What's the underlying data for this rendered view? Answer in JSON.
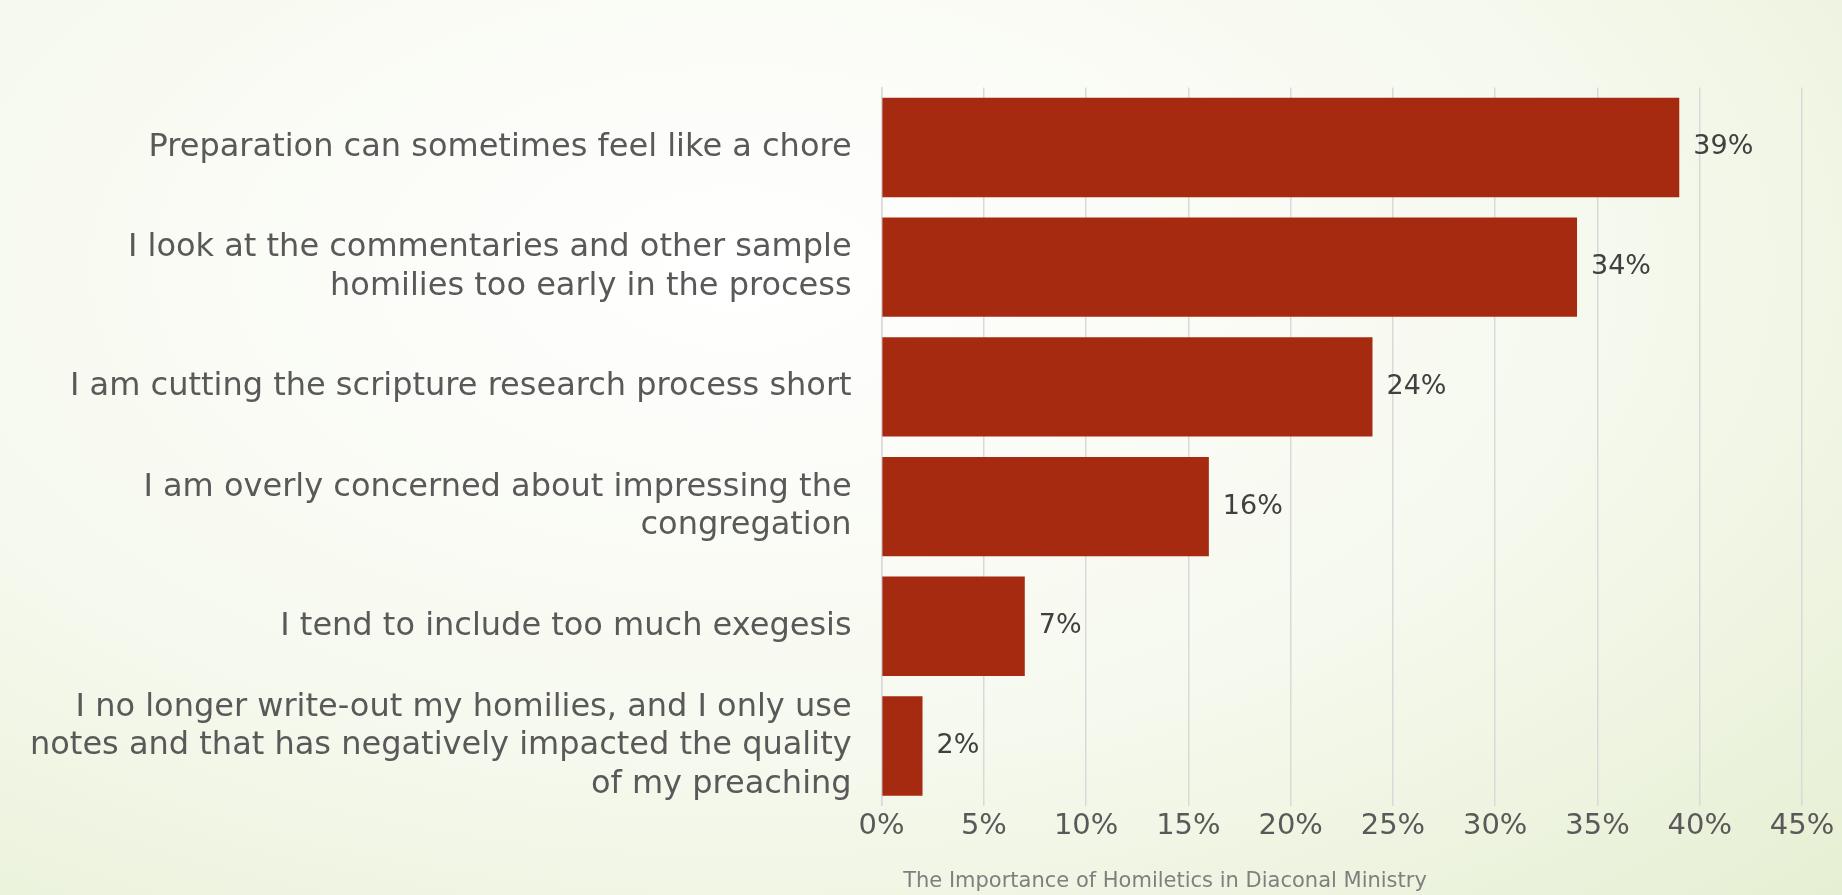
{
  "chart_data": {
    "type": "bar",
    "orientation": "horizontal",
    "categories": [
      "Preparation can sometimes feel like a chore",
      "I look at the commentaries and other sample homilies too early in the process",
      "I am cutting the scripture research process short",
      "I am overly concerned about impressing the congregation",
      "I tend to include too much exegesis",
      "I no longer write-out my homilies, and I only use notes and that has negatively impacted the quality of my preaching"
    ],
    "values": [
      39,
      34,
      24,
      16,
      7,
      2
    ],
    "value_labels": [
      "39%",
      "34%",
      "24%",
      "16%",
      "7%",
      "2%"
    ],
    "color": "#a52a10",
    "xlim": [
      0,
      45
    ],
    "xticks": [
      {
        "value": 0,
        "label": "0%"
      },
      {
        "value": 5,
        "label": "5%"
      },
      {
        "value": 10,
        "label": "10%"
      },
      {
        "value": 15,
        "label": "15%"
      },
      {
        "value": 20,
        "label": "20%"
      },
      {
        "value": 25,
        "label": "25%"
      },
      {
        "value": 30,
        "label": "30%"
      },
      {
        "value": 35,
        "label": "35%"
      },
      {
        "value": 40,
        "label": "40%"
      },
      {
        "value": 45,
        "label": "45%"
      }
    ],
    "grid": "x",
    "legend": false,
    "annotations": [
      "The Importance of Homiletics in Diaconal Ministry"
    ]
  }
}
